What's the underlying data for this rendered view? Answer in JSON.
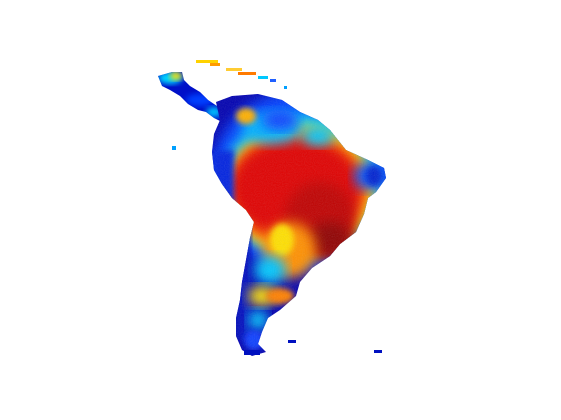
{
  "map": {
    "region": "Latin America",
    "colormap": "jet",
    "colors": {
      "background": "#ffffff",
      "dark_blue": "#00008f",
      "blue": "#0033ff",
      "cyan": "#00d8ff",
      "yellow": "#ffe000",
      "orange": "#ff6a00",
      "red": "#e60000",
      "dark_red": "#8f0000"
    }
  }
}
